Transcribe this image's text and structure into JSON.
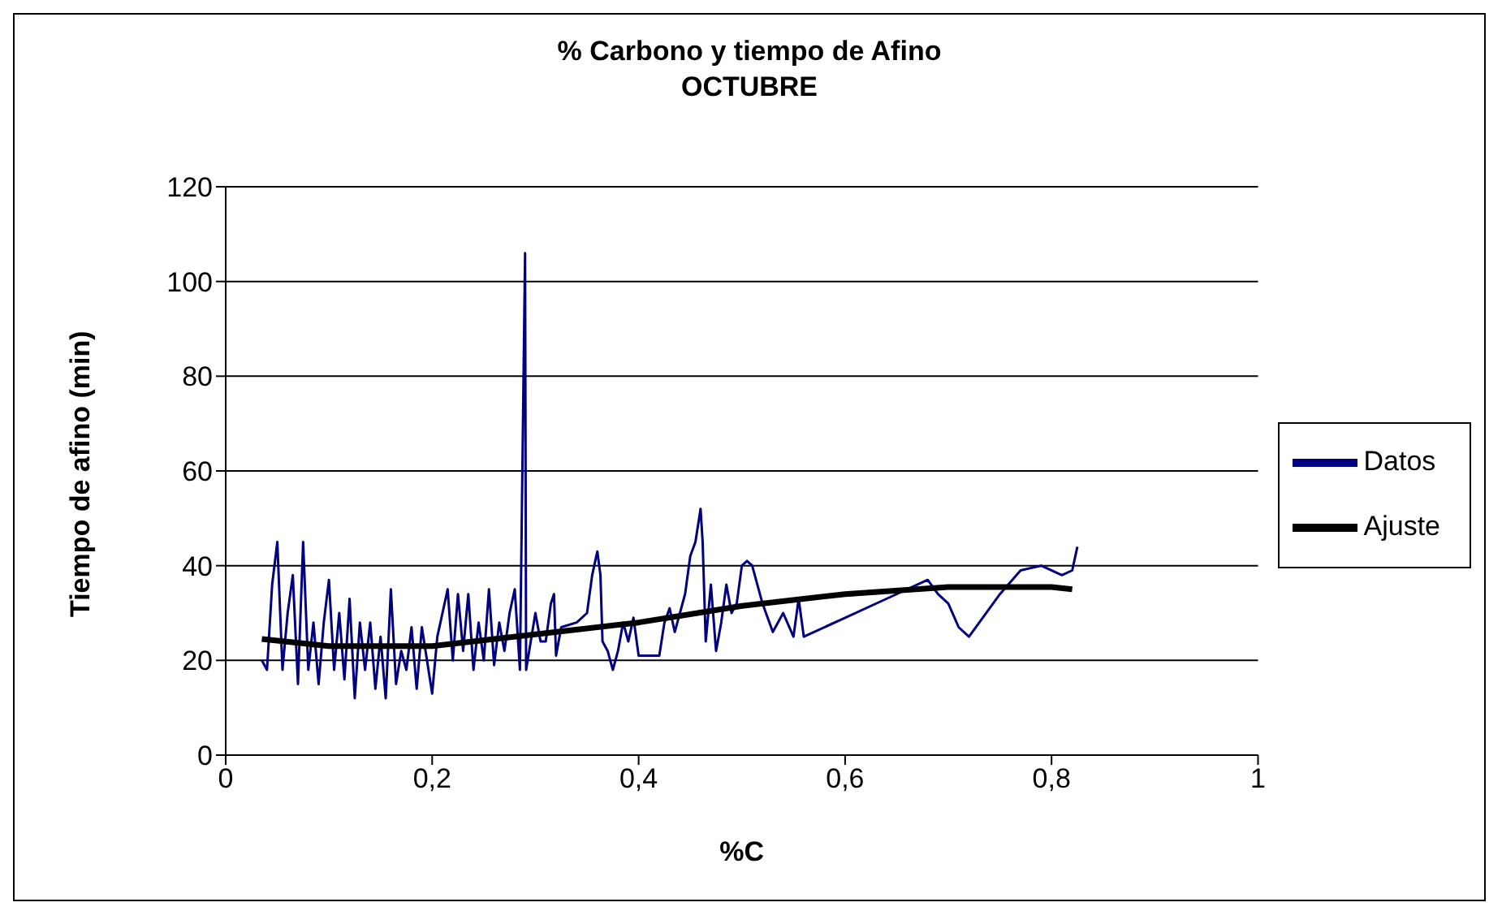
{
  "chart_data": {
    "type": "line",
    "title": "% Carbono y tiempo de Afino",
    "subtitle": "OCTUBRE",
    "xlabel": "%C",
    "ylabel": "Tiempo de afino (min)",
    "xlim": [
      0,
      1
    ],
    "xticks": [
      {
        "value": 0,
        "label": "0"
      },
      {
        "value": 0.2,
        "label": "0,2"
      },
      {
        "value": 0.4,
        "label": "0,4"
      },
      {
        "value": 0.6,
        "label": "0,6"
      },
      {
        "value": 0.8,
        "label": "0,8"
      },
      {
        "value": 1,
        "label": "1"
      }
    ],
    "ylim": [
      0,
      120
    ],
    "yticks": [
      0,
      20,
      40,
      60,
      80,
      100,
      120
    ],
    "grid": "y",
    "legend": "right",
    "marker": "none",
    "series": [
      {
        "name": "Datos",
        "color": "#000080",
        "x": [
          0.035,
          0.04,
          0.045,
          0.05,
          0.055,
          0.06,
          0.065,
          0.07,
          0.075,
          0.08,
          0.085,
          0.09,
          0.095,
          0.1,
          0.105,
          0.11,
          0.115,
          0.12,
          0.125,
          0.13,
          0.135,
          0.14,
          0.145,
          0.15,
          0.155,
          0.16,
          0.165,
          0.17,
          0.175,
          0.18,
          0.185,
          0.19,
          0.195,
          0.2,
          0.205,
          0.21,
          0.215,
          0.22,
          0.225,
          0.23,
          0.235,
          0.24,
          0.245,
          0.25,
          0.255,
          0.26,
          0.265,
          0.27,
          0.275,
          0.28,
          0.285,
          0.29,
          0.291,
          0.3,
          0.305,
          0.31,
          0.315,
          0.318,
          0.32,
          0.325,
          0.34,
          0.35,
          0.355,
          0.36,
          0.363,
          0.365,
          0.37,
          0.375,
          0.38,
          0.385,
          0.39,
          0.395,
          0.4,
          0.42,
          0.425,
          0.43,
          0.435,
          0.44,
          0.445,
          0.45,
          0.455,
          0.46,
          0.462,
          0.465,
          0.47,
          0.475,
          0.48,
          0.485,
          0.49,
          0.495,
          0.5,
          0.505,
          0.51,
          0.52,
          0.53,
          0.54,
          0.55,
          0.555,
          0.56,
          0.6,
          0.64,
          0.68,
          0.69,
          0.7,
          0.71,
          0.72,
          0.75,
          0.77,
          0.79,
          0.81,
          0.82,
          0.825
        ],
        "values": [
          20,
          18,
          36,
          45,
          18,
          30,
          38,
          15,
          45,
          18,
          28,
          15,
          28,
          37,
          18,
          30,
          16,
          33,
          12,
          28,
          18,
          28,
          14,
          25,
          12,
          35,
          15,
          22,
          18,
          27,
          14,
          27,
          20,
          13,
          25,
          30,
          35,
          20,
          34,
          22,
          34,
          18,
          28,
          20,
          35,
          19,
          28,
          22,
          30,
          35,
          18,
          106,
          18,
          30,
          24,
          24,
          32,
          34,
          21,
          27,
          28,
          30,
          38,
          43,
          38,
          24,
          22,
          18,
          22,
          28,
          24,
          29,
          21,
          21,
          28,
          31,
          26,
          30,
          34,
          42,
          45,
          52,
          45,
          24,
          36,
          22,
          28,
          36,
          30,
          32,
          40,
          41,
          40,
          32,
          26,
          30,
          25,
          33,
          25,
          29,
          33,
          37,
          34,
          32,
          27,
          25,
          34,
          39,
          40,
          38,
          39,
          44
        ]
      },
      {
        "name": "Ajuste",
        "color": "#000000",
        "x": [
          0.035,
          0.1,
          0.2,
          0.3,
          0.4,
          0.5,
          0.6,
          0.7,
          0.8,
          0.82
        ],
        "values": [
          24.5,
          23,
          23,
          25.5,
          28,
          31.5,
          34,
          35.5,
          35.5,
          35
        ]
      }
    ]
  }
}
